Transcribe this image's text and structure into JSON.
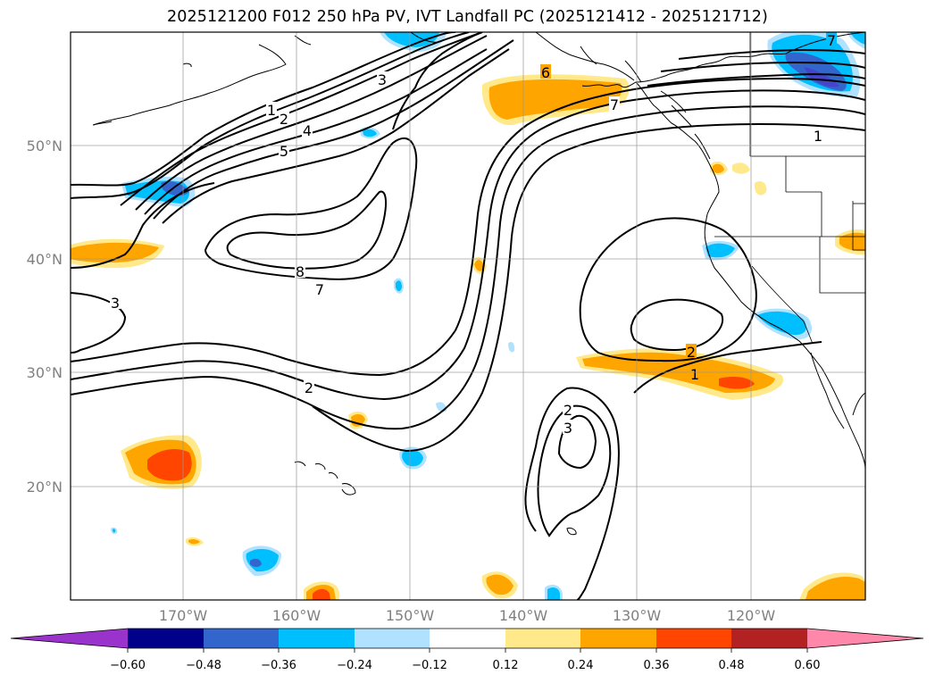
{
  "title": "2025121200 F012 250 hPa PV, IVT Landfall PC (2025121412 - 2025121712)",
  "lat_labels": [
    "50°N",
    "40°N",
    "30°N",
    "20°N"
  ],
  "lon_labels": [
    "170°W",
    "160°W",
    "150°W",
    "140°W",
    "130°W",
    "120°W"
  ],
  "contour_labels": [
    "1",
    "2",
    "3",
    "4",
    "5",
    "6",
    "7",
    "8",
    "7",
    "3",
    "2",
    "2",
    "1",
    "2",
    "3",
    "1",
    "7"
  ],
  "colorbar": {
    "ticks": [
      "−0.60",
      "−0.48",
      "−0.36",
      "−0.24",
      "−0.12",
      "0.12",
      "0.24",
      "0.36",
      "0.48",
      "0.60"
    ],
    "colors": [
      "#9933cc",
      "#00008b",
      "#3366cc",
      "#00bfff",
      "#b0e2ff",
      "#ffffff",
      "#ffe98a",
      "#ffa500",
      "#ff4500",
      "#b22222",
      "#ff88aa"
    ]
  },
  "colors": {
    "neg_light": "#b0e2ff",
    "neg_mid": "#00bfff",
    "neg_dark": "#3366cc",
    "neg_darkest": "#4444cc",
    "pos_light": "#ffe98a",
    "pos_mid": "#ffa500",
    "pos_dark": "#ff4500"
  }
}
